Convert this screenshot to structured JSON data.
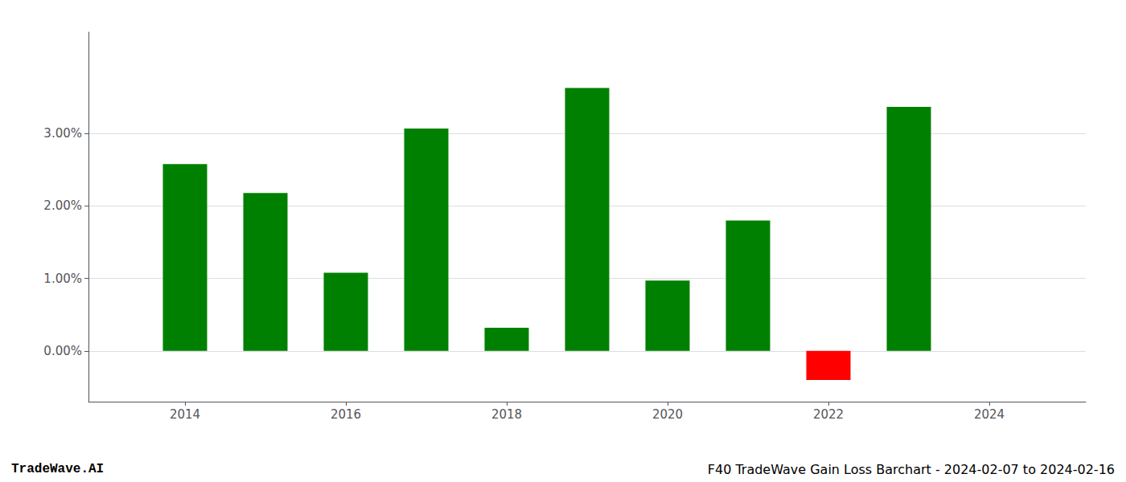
{
  "chart_data": {
    "type": "bar",
    "x": [
      2014,
      2015,
      2016,
      2017,
      2018,
      2019,
      2020,
      2021,
      2022,
      2023
    ],
    "values": [
      0.0258,
      0.0218,
      0.0108,
      0.0307,
      0.0032,
      0.0363,
      0.0097,
      0.018,
      -0.004,
      0.0337
    ],
    "colors": [
      "#008000",
      "#008000",
      "#008000",
      "#008000",
      "#008000",
      "#008000",
      "#008000",
      "#008000",
      "#ff0000",
      "#008000"
    ],
    "xlim": [
      2012.8,
      2025.2
    ],
    "xticks": [
      2014,
      2016,
      2018,
      2020,
      2022,
      2024
    ],
    "ylim": [
      -0.007,
      0.044
    ],
    "yticks": [
      {
        "value": 0.0,
        "label": "0.00%"
      },
      {
        "value": 0.01,
        "label": "1.00%"
      },
      {
        "value": 0.02,
        "label": "2.00%"
      },
      {
        "value": 0.03,
        "label": "3.00%"
      }
    ],
    "grid": true,
    "annotations": [
      "TradeWave.AI",
      "F40 TradeWave Gain Loss Barchart - 2024-02-07 to 2024-02-16"
    ]
  }
}
